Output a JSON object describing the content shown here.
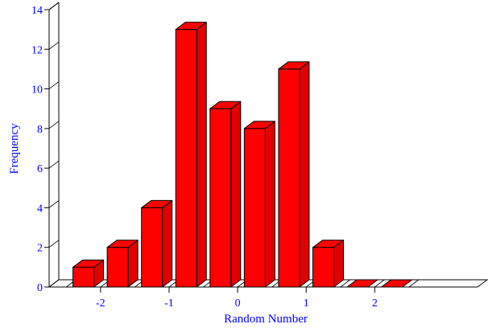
{
  "colors": {
    "bar_front": "#ff0000",
    "bar_top": "#ff0000",
    "bar_side": "#e00000",
    "axis": "#000000",
    "text": "#0000ff"
  },
  "chart_data": {
    "type": "bar",
    "style": "3d",
    "title": "",
    "xlabel": "Random Number",
    "ylabel": "Frequency",
    "ylim": [
      0,
      14
    ],
    "xlim": [
      -2.75,
      3.5
    ],
    "y_ticks": [
      0,
      2,
      4,
      6,
      8,
      10,
      12,
      14
    ],
    "x_ticks": [
      -2,
      -1,
      0,
      1,
      2
    ],
    "x_tick_labels": [
      "-2",
      "-1",
      "0",
      "1",
      "2"
    ],
    "bin_width": 0.5,
    "bins": [
      -2.25,
      -1.75,
      -1.25,
      -0.75,
      -0.25,
      0.25,
      0.75,
      1.25,
      1.75,
      2.25
    ],
    "values": [
      1,
      2,
      4,
      13,
      9,
      8,
      11,
      2,
      0,
      0
    ],
    "grid": false,
    "legend": "none"
  }
}
